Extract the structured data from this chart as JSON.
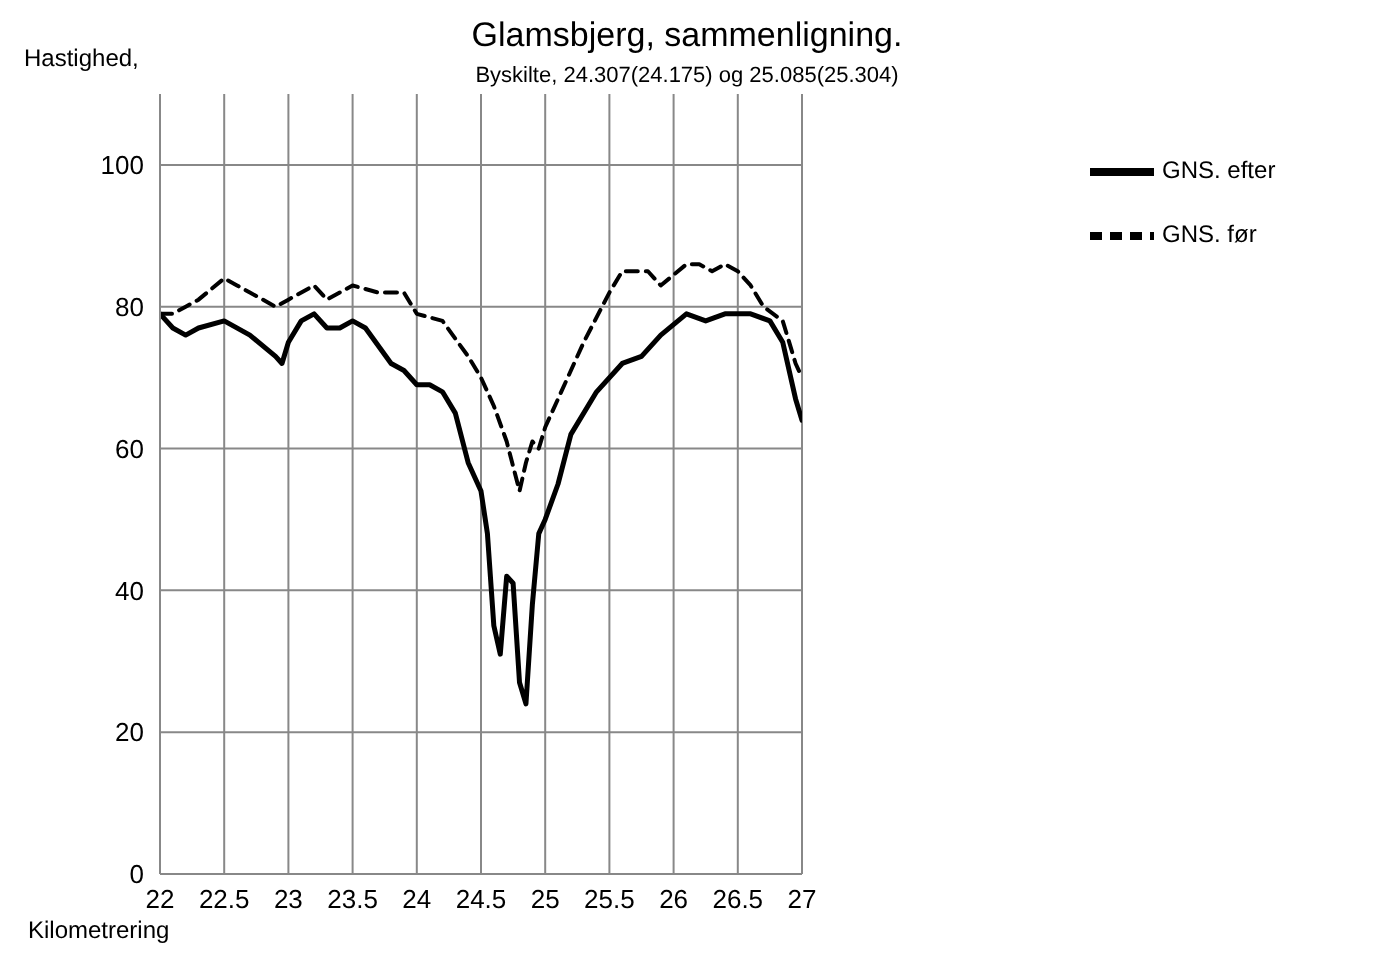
{
  "chart_data": {
    "type": "line",
    "title": "Glamsbjerg, sammenligning.",
    "subtitle": "Byskilte, 24.307(24.175) og 25.085(25.304)",
    "xlabel": "Kilometrering",
    "ylabel": "Hastighed,",
    "xlim": [
      22,
      27
    ],
    "xticks": [
      22,
      22.5,
      23,
      23.5,
      24,
      24.5,
      25,
      25.5,
      26,
      26.5,
      27
    ],
    "ylim": [
      0,
      110
    ],
    "yticks": [
      0,
      20,
      40,
      60,
      80,
      100
    ],
    "grid": true,
    "legend": "top right",
    "marker": "none",
    "series": [
      {
        "name": "GNS. før",
        "color": "#000000",
        "line_style": "dashed",
        "x": [
          22,
          22.1,
          22.2,
          22.3,
          22.5,
          22.6,
          22.7,
          22.9,
          23,
          23.2,
          23.3,
          23.5,
          23.7,
          23.9,
          24,
          24.2,
          24.4,
          24.5,
          24.6,
          24.7,
          24.8,
          24.85,
          24.9,
          24.95,
          25,
          25.1,
          25.3,
          25.5,
          25.6,
          25.8,
          25.9,
          26.1,
          26.2,
          26.3,
          26.4,
          26.5,
          26.6,
          26.7,
          26.85,
          26.95,
          27
        ],
        "values": [
          79,
          79,
          80,
          81,
          84,
          83,
          82,
          80,
          81,
          83,
          81,
          83,
          82,
          82,
          79,
          78,
          73,
          70,
          66,
          61,
          54,
          58,
          61,
          60,
          63,
          67,
          75,
          82,
          85,
          85,
          83,
          86,
          86,
          85,
          86,
          85,
          83,
          80,
          78,
          72,
          70
        ]
      },
      {
        "name": "GNS. efter",
        "color": "#000000",
        "line_style": "solid",
        "x": [
          22,
          22.1,
          22.2,
          22.3,
          22.5,
          22.7,
          22.9,
          22.95,
          23,
          23.1,
          23.2,
          23.3,
          23.4,
          23.5,
          23.6,
          23.8,
          23.9,
          24,
          24.1,
          24.2,
          24.3,
          24.4,
          24.5,
          24.55,
          24.6,
          24.65,
          24.7,
          24.75,
          24.8,
          24.85,
          24.9,
          24.95,
          25,
          25.1,
          25.2,
          25.4,
          25.6,
          25.75,
          25.9,
          26.1,
          26.25,
          26.4,
          26.6,
          26.75,
          26.85,
          26.95,
          27
        ],
        "values": [
          79,
          77,
          76,
          77,
          78,
          76,
          73,
          72,
          75,
          78,
          79,
          77,
          77,
          78,
          77,
          72,
          71,
          69,
          69,
          68,
          65,
          58,
          54,
          48,
          35,
          31,
          42,
          41,
          27,
          24,
          38,
          48,
          50,
          55,
          62,
          68,
          72,
          73,
          76,
          79,
          78,
          79,
          79,
          78,
          75,
          67,
          64
        ]
      }
    ]
  }
}
